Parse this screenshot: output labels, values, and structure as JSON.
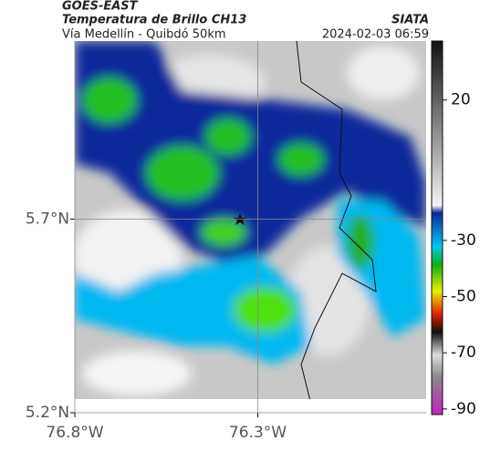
{
  "header": {
    "title": "GOES-EAST",
    "subtitle": "Temperatura de Brillo CH13",
    "source": "SIATA",
    "route": "Vía Medellín - Quibdó 50km",
    "timestamp": "2024-02-03 06:59"
  },
  "map": {
    "latlim": [
      5.2,
      6.16
    ],
    "lonlim": [
      -76.8,
      -75.84
    ],
    "lat_ticks": [
      {
        "value": 5.7,
        "label": "5.7°N"
      },
      {
        "value": 5.2,
        "label": "5.2°N"
      }
    ],
    "lon_ticks": [
      {
        "value": -76.8,
        "label": "76.8°W"
      },
      {
        "value": -76.3,
        "label": "76.3°W"
      }
    ]
  },
  "colorbar": {
    "lim": [
      -92,
      41
    ],
    "ticks": [
      20,
      -30,
      -50,
      -70,
      -90
    ]
  }
}
